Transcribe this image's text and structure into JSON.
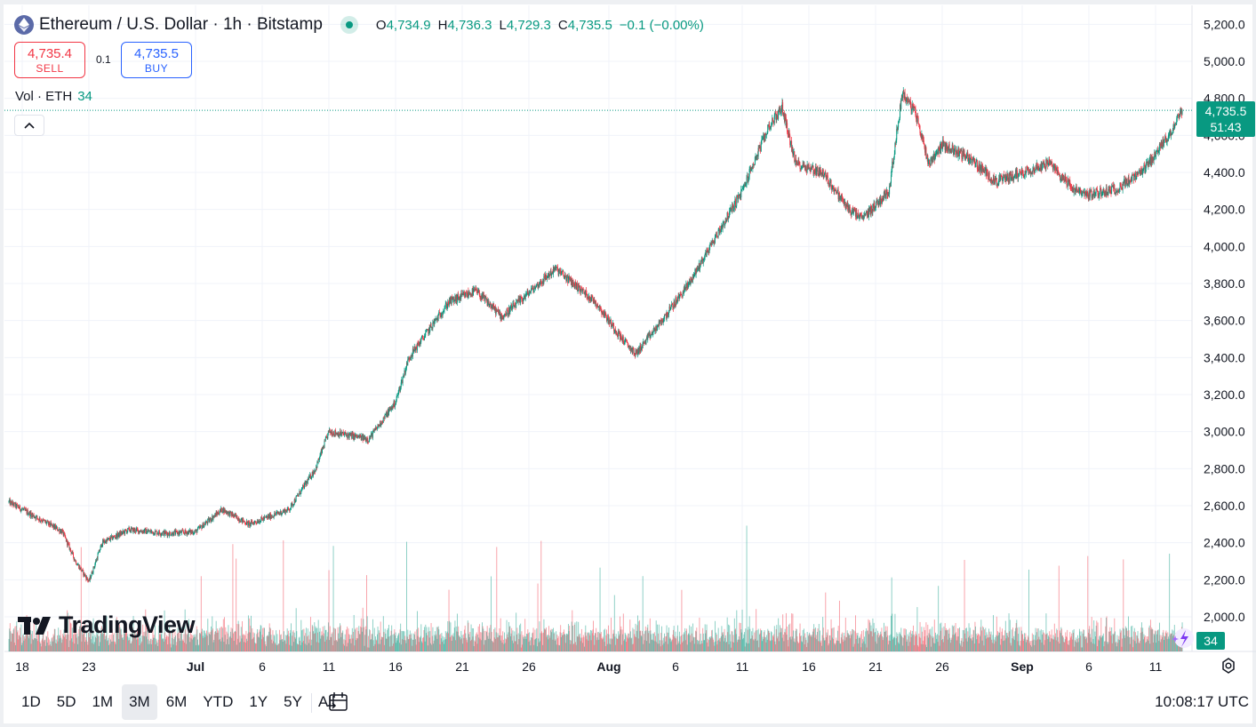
{
  "header": {
    "symbol_title": "Ethereum / U.S. Dollar · 1h · Bitstamp",
    "ohlc": {
      "o_label": "O",
      "o": "4,734.9",
      "h_label": "H",
      "h": "4,736.3",
      "l_label": "L",
      "l": "4,729.3",
      "c_label": "C",
      "c": "4,735.5",
      "change": "−0.1 (−0.00%)"
    }
  },
  "trade": {
    "sell_price": "4,735.4",
    "sell_label": "SELL",
    "spread": "0.1",
    "buy_price": "4,735.5",
    "buy_label": "BUY"
  },
  "volume_legend": {
    "label": "Vol · ETH",
    "value": "34"
  },
  "last_price_tag": {
    "price": "4,735.5",
    "countdown": "51:43"
  },
  "volume_tag": "34",
  "logo_text": "TradingView",
  "bottom_bar": {
    "ranges": [
      "1D",
      "5D",
      "1M",
      "3M",
      "6M",
      "YTD",
      "1Y",
      "5Y",
      "All"
    ],
    "active_range": "3M",
    "clock": "10:08:17 UTC"
  },
  "colors": {
    "up": "#089981",
    "down": "#f23645",
    "grid": "#f0f3fa"
  },
  "chart_data": {
    "type": "candlestick",
    "title": "Ethereum / U.S. Dollar · 1h · Bitstamp",
    "ylabel": "",
    "ylim": [
      1800,
      5300
    ],
    "y_ticks": [
      "2,000.0",
      "2,200.0",
      "2,400.0",
      "2,600.0",
      "2,800.0",
      "3,000.0",
      "3,200.0",
      "3,400.0",
      "3,600.0",
      "3,800.0",
      "4,000.0",
      "4,200.0",
      "4,400.0",
      "4,600.0",
      "4,800.0",
      "5,000.0",
      "5,200.0"
    ],
    "x_ticks": [
      "18",
      "23",
      "Jul",
      "6",
      "11",
      "16",
      "21",
      "26",
      "Aug",
      "6",
      "11",
      "16",
      "21",
      "26",
      "Sep",
      "6",
      "11"
    ],
    "x_dates": [
      "2025-06-18",
      "2025-06-23",
      "2025-07-01",
      "2025-07-06",
      "2025-07-11",
      "2025-07-16",
      "2025-07-21",
      "2025-07-26",
      "2025-08-01",
      "2025-08-06",
      "2025-08-11",
      "2025-08-16",
      "2025-08-21",
      "2025-08-26",
      "2025-09-01",
      "2025-09-06",
      "2025-09-11"
    ],
    "price_path": {
      "dates": [
        "2025-06-17",
        "2025-06-19",
        "2025-06-21",
        "2025-06-22",
        "2025-06-23",
        "2025-06-24",
        "2025-06-26",
        "2025-06-29",
        "2025-07-01",
        "2025-07-03",
        "2025-07-05",
        "2025-07-08",
        "2025-07-10",
        "2025-07-11",
        "2025-07-14",
        "2025-07-16",
        "2025-07-17",
        "2025-07-19",
        "2025-07-20",
        "2025-07-22",
        "2025-07-24",
        "2025-07-26",
        "2025-07-28",
        "2025-07-31",
        "2025-08-02",
        "2025-08-03",
        "2025-08-05",
        "2025-08-07",
        "2025-08-09",
        "2025-08-11",
        "2025-08-13",
        "2025-08-14",
        "2025-08-15",
        "2025-08-17",
        "2025-08-19",
        "2025-08-20",
        "2025-08-22",
        "2025-08-23",
        "2025-08-24",
        "2025-08-25",
        "2025-08-26",
        "2025-08-28",
        "2025-08-30",
        "2025-09-01",
        "2025-09-03",
        "2025-09-05",
        "2025-09-06",
        "2025-09-08",
        "2025-09-10",
        "2025-09-12",
        "2025-09-13"
      ],
      "close": [
        2620,
        2540,
        2460,
        2300,
        2190,
        2400,
        2470,
        2450,
        2460,
        2580,
        2500,
        2580,
        2800,
        3000,
        2960,
        3160,
        3400,
        3600,
        3700,
        3760,
        3620,
        3750,
        3880,
        3700,
        3500,
        3420,
        3600,
        3800,
        4050,
        4300,
        4650,
        4750,
        4450,
        4400,
        4200,
        4150,
        4300,
        4830,
        4720,
        4450,
        4550,
        4480,
        4350,
        4400,
        4450,
        4300,
        4280,
        4310,
        4400,
        4600,
        4735.5
      ]
    },
    "volume_max": 2700,
    "last_price": 4735.5,
    "last_volume": 34
  }
}
